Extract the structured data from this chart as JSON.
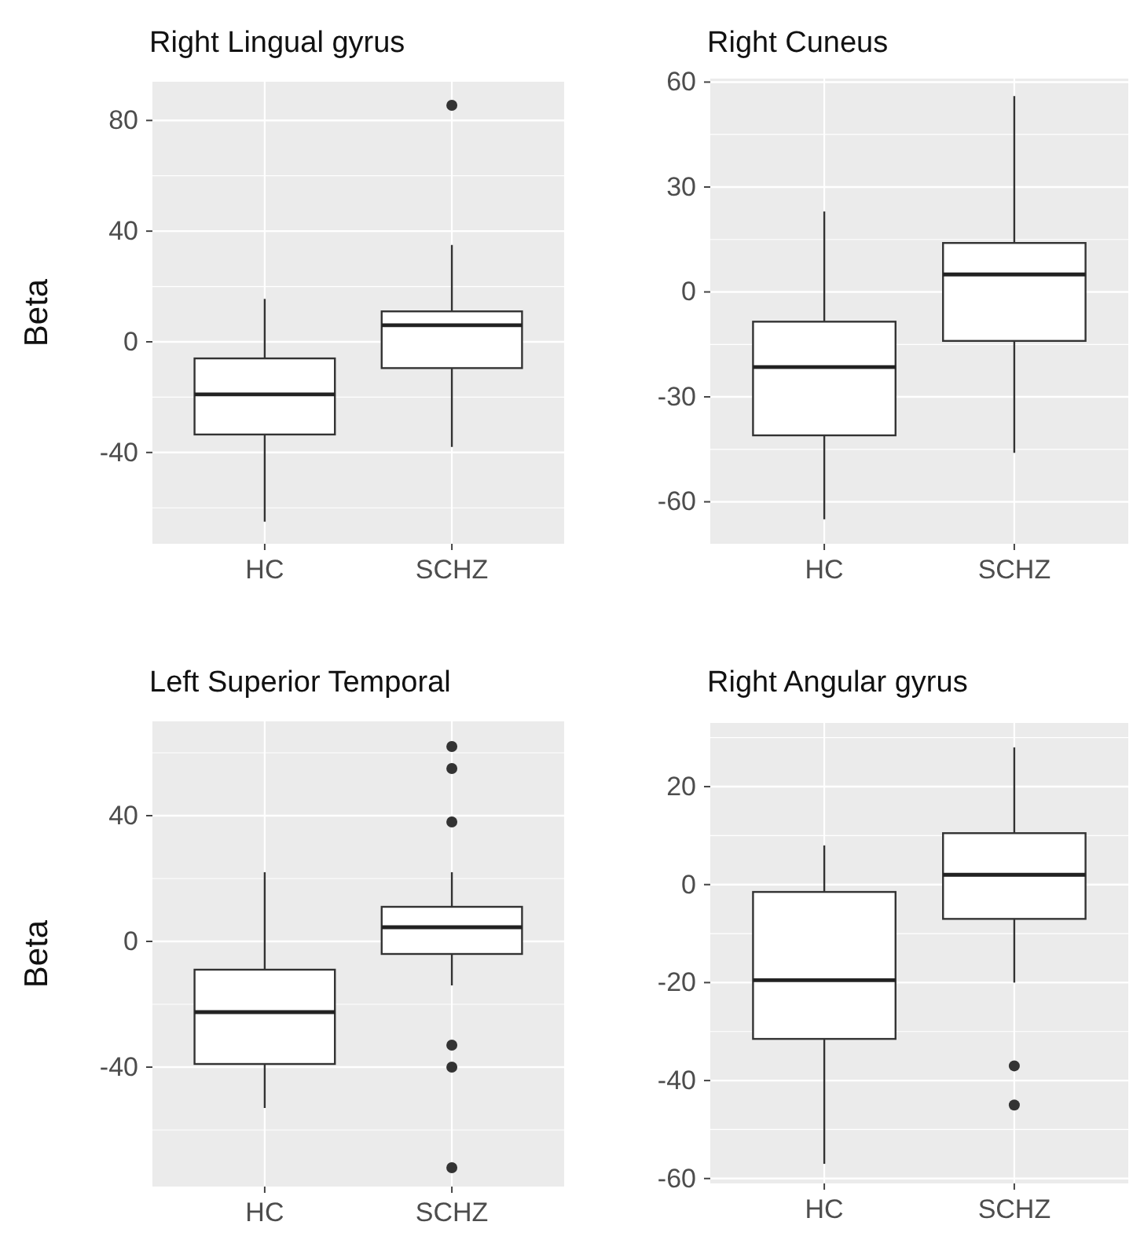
{
  "chart_data": [
    {
      "type": "box",
      "title": "Right Lingual gyrus",
      "ylabel": "Beta",
      "categories": [
        "HC",
        "SCHZ"
      ],
      "ylim": [
        -73,
        94
      ],
      "yticks": [
        -40,
        0,
        40,
        80
      ],
      "grid": true,
      "boxes": [
        {
          "low": -65,
          "q1": -33.5,
          "median": -19,
          "q3": -6,
          "high": 15.5
        },
        {
          "low": -38,
          "q1": -9.5,
          "median": 6,
          "q3": 11,
          "high": 35,
          "outliers": [
            85.5
          ]
        }
      ]
    },
    {
      "type": "box",
      "title": "Right Cuneus",
      "categories": [
        "HC",
        "SCHZ"
      ],
      "ylim": [
        -72,
        61
      ],
      "yticks": [
        -60,
        -30,
        0,
        30,
        60
      ],
      "grid": true,
      "boxes": [
        {
          "low": -65,
          "q1": -41,
          "median": -21.5,
          "q3": -8.5,
          "high": 23
        },
        {
          "low": -46,
          "q1": -14,
          "median": 5,
          "q3": 14,
          "high": 56
        }
      ]
    },
    {
      "type": "box",
      "title": "Left Superior Temporal",
      "ylabel": "Beta",
      "categories": [
        "HC",
        "SCHZ"
      ],
      "ylim": [
        -78,
        70
      ],
      "yticks": [
        -40,
        0,
        40
      ],
      "grid": true,
      "boxes": [
        {
          "low": -53,
          "q1": -39,
          "median": -22.5,
          "q3": -9,
          "high": 22
        },
        {
          "low": -14,
          "q1": -4,
          "median": 4.5,
          "q3": 11,
          "high": 22,
          "outliers": [
            62,
            55,
            38,
            -33,
            -40,
            -72
          ]
        }
      ]
    },
    {
      "type": "box",
      "title": "Right Angular gyrus",
      "categories": [
        "HC",
        "SCHZ"
      ],
      "ylim": [
        -61,
        33
      ],
      "yticks": [
        -60,
        -40,
        -20,
        0,
        20
      ],
      "grid": true,
      "boxes": [
        {
          "low": -57,
          "q1": -31.5,
          "median": -19.5,
          "q3": -1.5,
          "high": 8
        },
        {
          "low": -20,
          "q1": -7,
          "median": 2,
          "q3": 10.5,
          "high": 28,
          "outliers": [
            -37,
            -45
          ]
        }
      ]
    }
  ]
}
